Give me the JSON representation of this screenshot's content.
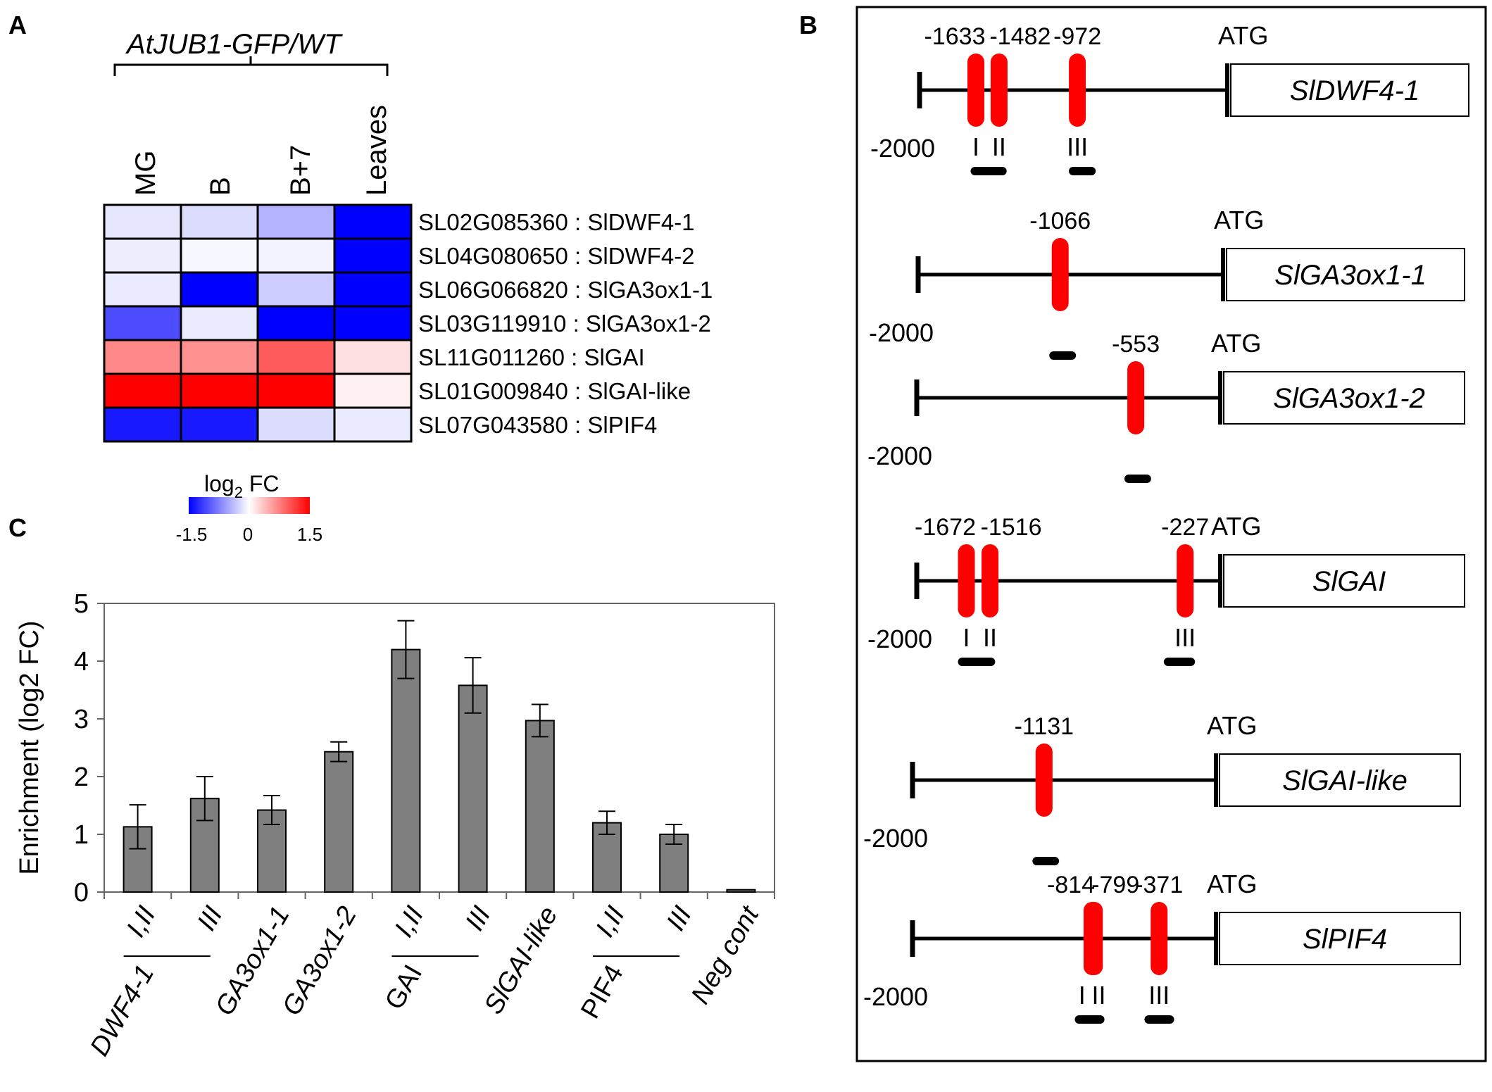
{
  "panel_labels": {
    "a": "A",
    "b": "B",
    "c": "C"
  },
  "chart_data": [
    {
      "type": "heatmap",
      "panel": "A",
      "group_label": "AtJUB1-GFP/WT",
      "columns": [
        "MG",
        "B",
        "B+7",
        "Leaves"
      ],
      "rows": [
        "SL02G085360 : SlDWF4-1",
        "SL04G080650 : SlDWF4-2",
        "SL06G066820 : SlGA3ox1-1",
        "SL03G119910 : SlGA3ox1-2",
        "SL11G011260 : SlGAI",
        "SL01G009840 : SlGAI-like",
        "SL07G043580 : SlPIF4"
      ],
      "values": [
        [
          -0.15,
          -0.2,
          -0.45,
          -1.5
        ],
        [
          -0.1,
          -0.05,
          -0.07,
          -1.5
        ],
        [
          -0.12,
          -1.5,
          -0.3,
          -1.5
        ],
        [
          -1.05,
          -0.12,
          -1.5,
          -1.5
        ],
        [
          0.7,
          0.65,
          0.95,
          0.18
        ],
        [
          1.5,
          1.5,
          1.5,
          0.08
        ],
        [
          -1.35,
          -1.35,
          -0.2,
          -0.12
        ]
      ],
      "colorbar": {
        "title_main": "log",
        "title_sub": "2",
        "title_end": " FC",
        "ticks": [
          "-1.5",
          "0",
          "1.5"
        ],
        "min": -1.5,
        "max": 1.5
      },
      "colors": {
        "low": "#0000ff",
        "mid": "#ffffff",
        "high": "#ff0000"
      }
    },
    {
      "type": "diagram",
      "panel": "B",
      "constructs": [
        {
          "gene": "SlDWF4-1",
          "start_label": "-2000",
          "atg_label": "ATG",
          "sites": [
            {
              "pos": -1633,
              "label": "-1633"
            },
            {
              "pos": -1482,
              "label": "-1482"
            },
            {
              "pos": -972,
              "label": "-972"
            }
          ],
          "regions": [
            {
              "label": "I",
              "pos": -1633
            },
            {
              "label": "II",
              "pos": -1482
            },
            {
              "label": "III",
              "pos": -972
            }
          ],
          "fragments": [
            [
              -1640,
              -1460
            ],
            [
              -1000,
              -880
            ]
          ]
        },
        {
          "gene": "SlGA3ox1-1",
          "start_label": "-2000",
          "atg_label": "ATG",
          "sites": [
            {
              "pos": -1066,
              "label": "-1066"
            }
          ],
          "regions": [],
          "fragments": [
            [
              -1110,
              -990
            ]
          ]
        },
        {
          "gene": "SlGA3ox1-2",
          "start_label": "-2000",
          "atg_label": "ATG",
          "sites": [
            {
              "pos": -553,
              "label": "-553"
            }
          ],
          "regions": [],
          "fragments": [
            [
              -600,
              -480
            ]
          ]
        },
        {
          "gene": "SlGAI",
          "start_label": "-2000",
          "atg_label": "ATG",
          "sites": [
            {
              "pos": -1672,
              "label": "-1672"
            },
            {
              "pos": -1516,
              "label": "-1516"
            },
            {
              "pos": -227,
              "label": "-227"
            }
          ],
          "regions": [
            {
              "label": "I",
              "pos": -1672
            },
            {
              "label": "II",
              "pos": -1516
            },
            {
              "label": "III",
              "pos": -227
            }
          ],
          "fragments": [
            [
              -1700,
              -1510
            ],
            [
              -340,
              -190
            ]
          ]
        },
        {
          "gene": "SlGAI-like",
          "start_label": "-2000",
          "atg_label": "ATG",
          "sites": [
            {
              "pos": -1131,
              "label": "-1131"
            }
          ],
          "regions": [],
          "fragments": [
            [
              -1180,
              -1060
            ]
          ]
        },
        {
          "gene": "SlPIF4",
          "start_label": "-2000",
          "atg_label": "ATG",
          "sites": [
            {
              "pos": -814,
              "label": "-814"
            },
            {
              "pos": -799,
              "label": "-799"
            },
            {
              "pos": -371,
              "label": "-371"
            }
          ],
          "regions": [
            {
              "label": "I",
              "pos": -880
            },
            {
              "label": "II",
              "pos": -770
            },
            {
              "label": "III",
              "pos": -371
            }
          ],
          "fragments": [
            [
              -900,
              -760
            ],
            [
              -440,
              -300
            ]
          ]
        }
      ],
      "site_color": "#ff0000"
    },
    {
      "type": "bar",
      "panel": "C",
      "ylabel": "Enrichment (log2 FC)",
      "ylim": [
        0,
        5
      ],
      "yticks": [
        "0",
        "1",
        "2",
        "3",
        "4",
        "5"
      ],
      "categories": [
        "I,II",
        "III",
        "GA3ox1-1",
        "GA3ox1-2",
        "I,II",
        "III",
        "SlGAI-like",
        "I,II",
        "III",
        "Neg cont"
      ],
      "values": [
        1.13,
        1.62,
        1.42,
        2.43,
        4.2,
        3.58,
        2.97,
        1.2,
        1.0,
        0.04
      ],
      "errors": [
        0.38,
        0.38,
        0.25,
        0.17,
        0.5,
        0.48,
        0.28,
        0.2,
        0.17,
        0.0
      ],
      "groups": [
        {
          "label": "DWF4-1",
          "members": [
            0,
            1
          ]
        },
        {
          "label": "GAI",
          "members": [
            4,
            5
          ]
        },
        {
          "label": "PIF4",
          "members": [
            7,
            8
          ]
        }
      ],
      "bar_color": "#7f7f7f"
    }
  ]
}
